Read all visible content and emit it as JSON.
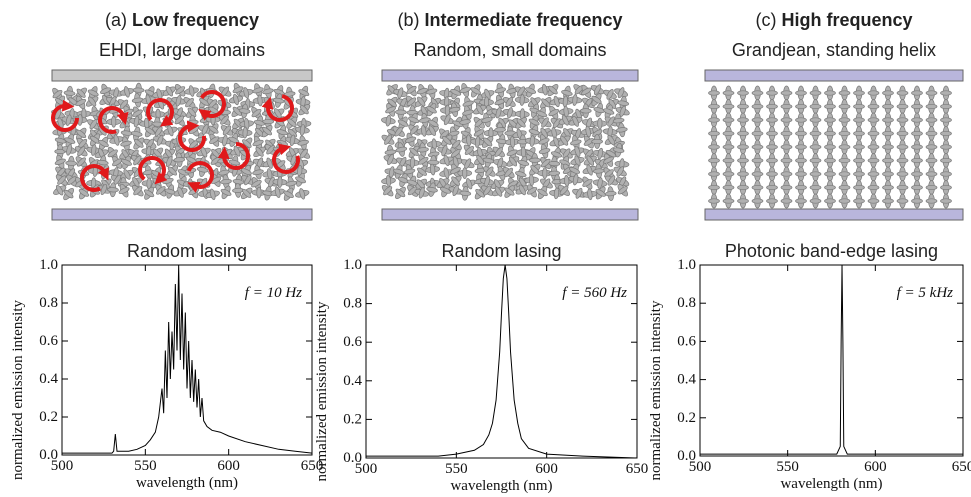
{
  "panels": [
    {
      "label": "(a)",
      "title": "Low frequency",
      "subtitle": "EHDI, large domains"
    },
    {
      "label": "(b)",
      "title": "Intermediate frequency",
      "subtitle": "Random, small domains"
    },
    {
      "label": "(c)",
      "title": "High frequency",
      "subtitle": "Grandjean, standing helix"
    }
  ],
  "chart_data": [
    {
      "type": "line",
      "title": "Random lasing",
      "annotation": "f = 10 Hz",
      "xlabel": "wavelength (nm)",
      "ylabel": "normalized emission intensity",
      "color": "#000000",
      "x": [
        500,
        510,
        520,
        530,
        531,
        532,
        533,
        540,
        545,
        550,
        553,
        556,
        558,
        560,
        561,
        562,
        563,
        564,
        565,
        566,
        567,
        568,
        569,
        570,
        571,
        572,
        573,
        574,
        575,
        576,
        577,
        578,
        579,
        580,
        581,
        582,
        583,
        584,
        585,
        587,
        590,
        595,
        600,
        610,
        620,
        630,
        640,
        650
      ],
      "values": [
        0.01,
        0.01,
        0.01,
        0.01,
        0.02,
        0.11,
        0.02,
        0.02,
        0.03,
        0.05,
        0.08,
        0.12,
        0.2,
        0.35,
        0.22,
        0.55,
        0.3,
        0.7,
        0.4,
        0.65,
        0.45,
        0.9,
        0.55,
        1.0,
        0.5,
        0.85,
        0.45,
        0.75,
        0.35,
        0.6,
        0.3,
        0.5,
        0.28,
        0.45,
        0.25,
        0.4,
        0.2,
        0.3,
        0.18,
        0.15,
        0.13,
        0.12,
        0.1,
        0.07,
        0.05,
        0.03,
        0.02,
        0.01
      ],
      "xlim": [
        500,
        650
      ],
      "xticks": [
        500,
        550,
        600,
        650
      ],
      "ylim": [
        0,
        1
      ],
      "yticks": [
        {
          "value": 0,
          "label": "0.0"
        },
        {
          "value": 0.2,
          "label": "0.2"
        },
        {
          "value": 0.4,
          "label": "0.4"
        },
        {
          "value": 0.6,
          "label": "0.6"
        },
        {
          "value": 0.8,
          "label": "0.8"
        },
        {
          "value": 1,
          "label": "1.0"
        }
      ]
    },
    {
      "type": "line",
      "title": "Random lasing",
      "annotation": "f = 560 Hz",
      "xlabel": "wavelength (nm)",
      "ylabel": "normalized emission intensity",
      "color": "#000000",
      "x": [
        500,
        520,
        540,
        550,
        560,
        565,
        568,
        570,
        572,
        574,
        575,
        576,
        577,
        578,
        579,
        580,
        582,
        584,
        586,
        590,
        600,
        620,
        650
      ],
      "values": [
        0.01,
        0.01,
        0.01,
        0.02,
        0.04,
        0.07,
        0.12,
        0.18,
        0.3,
        0.55,
        0.75,
        0.93,
        1.0,
        0.93,
        0.75,
        0.55,
        0.3,
        0.18,
        0.1,
        0.05,
        0.02,
        0.01,
        0.0
      ],
      "xlim": [
        500,
        650
      ],
      "xticks": [
        500,
        550,
        600,
        650
      ],
      "ylim": [
        0,
        1
      ],
      "yticks": [
        {
          "value": 0,
          "label": "0.0"
        },
        {
          "value": 0.2,
          "label": "0.2"
        },
        {
          "value": 0.4,
          "label": "0.4"
        },
        {
          "value": 0.6,
          "label": "0.6"
        },
        {
          "value": 0.8,
          "label": "0.8"
        },
        {
          "value": 1,
          "label": "1.0"
        }
      ]
    },
    {
      "type": "line",
      "title": "Photonic band-edge lasing",
      "annotation": "f = 5 kHz",
      "xlabel": "wavelength (nm)",
      "ylabel": "normalized emission intensity",
      "color": "#000000",
      "x": [
        500,
        550,
        578,
        580,
        580.5,
        581,
        581.5,
        582,
        584,
        620,
        650
      ],
      "values": [
        0.01,
        0.01,
        0.01,
        0.05,
        0.6,
        1.0,
        0.6,
        0.05,
        0.01,
        0.01,
        0.01
      ],
      "xlim": [
        500,
        650
      ],
      "xticks": [
        500,
        550,
        600,
        650
      ],
      "ylim": [
        0,
        1
      ],
      "yticks": [
        {
          "value": 0,
          "label": "0.0"
        },
        {
          "value": 0.2,
          "label": "0.2"
        },
        {
          "value": 0.4,
          "label": "0.4"
        },
        {
          "value": 0.6,
          "label": "0.6"
        },
        {
          "value": 0.8,
          "label": "0.8"
        },
        {
          "value": 1,
          "label": "1.0"
        }
      ]
    }
  ]
}
